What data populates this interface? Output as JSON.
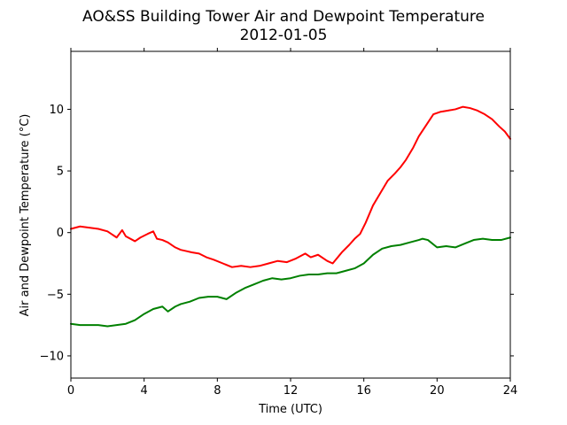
{
  "chart_data": {
    "type": "line",
    "title": "AO&SS Building Tower Air and Dewpoint Temperature",
    "subtitle": "2012-01-05",
    "xlabel": "Time (UTC)",
    "ylabel": "Air and Dewpoint Temperature (°C)",
    "xlim": [
      0,
      24
    ],
    "ylim": [
      -11.8,
      14.7
    ],
    "x_ticks": [
      0,
      4,
      8,
      12,
      16,
      20,
      24
    ],
    "y_ticks": [
      -10,
      -5,
      0,
      5,
      10
    ],
    "x_tick_labels": [
      "0",
      "4",
      "8",
      "12",
      "16",
      "20",
      "24"
    ],
    "y_tick_labels": [
      "−10",
      "−5",
      "0",
      "5",
      "10"
    ],
    "grid": false,
    "series": [
      {
        "color": "#ff0000",
        "x": [
          0,
          0.5,
          1,
          1.5,
          2,
          2.5,
          2.8,
          3,
          3.5,
          3.8,
          4.2,
          4.5,
          4.7,
          5,
          5.3,
          5.7,
          6,
          6.3,
          6.6,
          7,
          7.4,
          7.8,
          8.3,
          8.8,
          9.3,
          9.8,
          10.3,
          10.8,
          11.3,
          11.8,
          12.3,
          12.8,
          13.1,
          13.5,
          14,
          14.3,
          14.8,
          15.2,
          15.5,
          15.8,
          16.1,
          16.5,
          16.9,
          17.3,
          17.7,
          18,
          18.3,
          18.7,
          19,
          19.4,
          19.8,
          20.2,
          20.6,
          21,
          21.4,
          21.8,
          22.2,
          22.6,
          23,
          23.4,
          23.7,
          24
        ],
        "values": [
          0.3,
          0.5,
          0.4,
          0.3,
          0.1,
          -0.4,
          0.2,
          -0.3,
          -0.7,
          -0.4,
          -0.1,
          0.1,
          -0.5,
          -0.6,
          -0.8,
          -1.2,
          -1.4,
          -1.5,
          -1.6,
          -1.7,
          -2.0,
          -2.2,
          -2.5,
          -2.8,
          -2.7,
          -2.8,
          -2.7,
          -2.5,
          -2.3,
          -2.4,
          -2.1,
          -1.7,
          -2.0,
          -1.8,
          -2.3,
          -2.5,
          -1.6,
          -1.0,
          -0.5,
          -0.1,
          0.8,
          2.2,
          3.2,
          4.2,
          4.8,
          5.3,
          5.9,
          6.9,
          7.8,
          8.7,
          9.6,
          9.8,
          9.9,
          10.0,
          10.2,
          10.1,
          9.9,
          9.6,
          9.2,
          8.6,
          8.2,
          7.6
        ]
      },
      {
        "color": "#008000",
        "x": [
          0,
          0.5,
          1,
          1.5,
          2,
          2.5,
          3,
          3.5,
          4,
          4.5,
          5,
          5.3,
          5.7,
          6,
          6.5,
          7,
          7.5,
          8,
          8.5,
          9,
          9.5,
          10,
          10.5,
          11,
          11.5,
          12,
          12.5,
          13,
          13.5,
          14,
          14.5,
          15,
          15.5,
          16,
          16.5,
          17,
          17.5,
          18,
          18.5,
          19,
          19.2,
          19.5,
          20,
          20.5,
          21,
          21.5,
          22,
          22.5,
          23,
          23.5,
          24
        ],
        "values": [
          -7.4,
          -7.5,
          -7.5,
          -7.5,
          -7.6,
          -7.5,
          -7.4,
          -7.1,
          -6.6,
          -6.2,
          -6.0,
          -6.4,
          -6.0,
          -5.8,
          -5.6,
          -5.3,
          -5.2,
          -5.2,
          -5.4,
          -4.9,
          -4.5,
          -4.2,
          -3.9,
          -3.7,
          -3.8,
          -3.7,
          -3.5,
          -3.4,
          -3.4,
          -3.3,
          -3.3,
          -3.1,
          -2.9,
          -2.5,
          -1.8,
          -1.3,
          -1.1,
          -1.0,
          -0.8,
          -0.6,
          -0.5,
          -0.6,
          -1.2,
          -1.1,
          -1.2,
          -0.9,
          -0.6,
          -0.5,
          -0.6,
          -0.6,
          -0.4
        ]
      }
    ]
  }
}
